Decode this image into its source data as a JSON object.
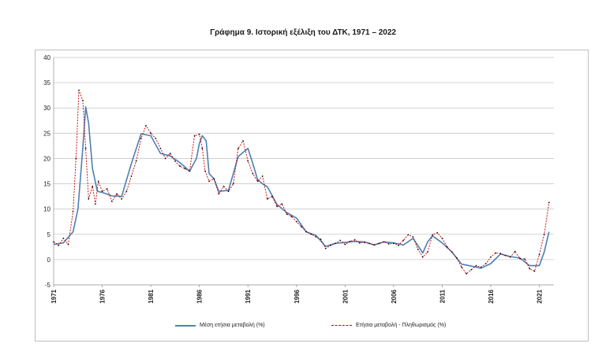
{
  "chart_data": {
    "type": "line",
    "title": "Γράφημα 9. Ιστορική εξέλιξη του ΔΤΚ, 1971 – 2022",
    "xlabel": "",
    "ylabel": "",
    "xlim": [
      1971,
      2022.5
    ],
    "ylim": [
      -5,
      40
    ],
    "yticks": [
      -5,
      0,
      5,
      10,
      15,
      20,
      25,
      30,
      35,
      40
    ],
    "xticks": [
      1971,
      1976,
      1981,
      1986,
      1991,
      1996,
      2001,
      2006,
      2011,
      2016,
      2021
    ],
    "grid": "horizontal",
    "legend_position": "bottom",
    "series": [
      {
        "name": "Μέση ετήσια μεταβολή (%)",
        "color": "#4f7fb3",
        "style": "solid",
        "x": [
          1971,
          1972,
          1973,
          1973.5,
          1974,
          1974.3,
          1974.6,
          1975,
          1975.5,
          1976,
          1977,
          1978,
          1979,
          1980,
          1981,
          1982,
          1983,
          1984,
          1985,
          1985.7,
          1986,
          1986.3,
          1986.7,
          1987,
          1987.5,
          1988,
          1989,
          1990,
          1991,
          1991.5,
          1992,
          1992.5,
          1993,
          1994,
          1995,
          1996,
          1997,
          1998,
          1999,
          2000,
          2001,
          2002,
          2003,
          2004,
          2005,
          2006,
          2007,
          2008,
          2009,
          2009.5,
          2010,
          2011,
          2012,
          2013,
          2014,
          2015,
          2016,
          2017,
          2018,
          2019,
          2020,
          2021,
          2021.5,
          2022
        ],
        "values": [
          3.0,
          3.3,
          5.5,
          10,
          22,
          30.2,
          27,
          18,
          13.5,
          13.3,
          12.6,
          12.5,
          19.0,
          24.9,
          24.5,
          21.0,
          20.5,
          19.2,
          17.5,
          20,
          23,
          24.5,
          23.5,
          17,
          16,
          13.5,
          13.7,
          20.4,
          22,
          19,
          15.8,
          15,
          14.4,
          10.9,
          9.3,
          8.2,
          5.5,
          4.8,
          2.6,
          3.2,
          3.4,
          3.6,
          3.5,
          2.9,
          3.5,
          3.3,
          2.9,
          4.2,
          1.3,
          3.5,
          4.7,
          3.3,
          1.5,
          -0.9,
          -1.3,
          -1.7,
          -0.8,
          1.1,
          0.6,
          0.3,
          -1.2,
          -1.2,
          1.5,
          5.5
        ]
      },
      {
        "name": "Ετήσια μεταβολή - Πληθωρισμός (%)",
        "color": "#c00000",
        "style": "dashed",
        "x": [
          1971,
          1971.5,
          1972,
          1972.5,
          1973,
          1973.3,
          1973.6,
          1974,
          1974.3,
          1974.6,
          1975,
          1975.3,
          1975.6,
          1976,
          1976.5,
          1977,
          1977.5,
          1978,
          1978.5,
          1979,
          1979.5,
          1980,
          1980.5,
          1981,
          1981.5,
          1982,
          1982.5,
          1983,
          1983.5,
          1984,
          1984.5,
          1985,
          1985.5,
          1986,
          1986.3,
          1986.6,
          1987,
          1987.5,
          1988,
          1988.5,
          1989,
          1989.5,
          1990,
          1990.5,
          1991,
          1991.5,
          1992,
          1992.5,
          1993,
          1993.5,
          1994,
          1994.5,
          1995,
          1995.5,
          1996,
          1996.5,
          1997,
          1997.5,
          1998,
          1998.5,
          1999,
          1999.5,
          2000,
          2000.5,
          2001,
          2001.5,
          2002,
          2002.5,
          2003,
          2003.5,
          2004,
          2004.5,
          2005,
          2005.5,
          2006,
          2006.5,
          2007,
          2007.5,
          2008,
          2008.5,
          2009,
          2009.5,
          2010,
          2010.5,
          2011,
          2011.5,
          2012,
          2012.5,
          2013,
          2013.5,
          2014,
          2014.5,
          2015,
          2015.5,
          2016,
          2016.5,
          2017,
          2017.5,
          2018,
          2018.5,
          2019,
          2019.5,
          2020,
          2020.5,
          2021,
          2021.5,
          2022
        ],
        "values": [
          3.5,
          2.8,
          4.2,
          3.0,
          9.5,
          20,
          33.5,
          31.5,
          22,
          12,
          14.5,
          11,
          15.5,
          13.5,
          14.0,
          11.5,
          13.0,
          12.0,
          13.5,
          16.5,
          19.5,
          24.0,
          26.5,
          25.0,
          24.0,
          22.0,
          20.0,
          21.0,
          19.5,
          18.5,
          18.0,
          17.5,
          24.5,
          24.8,
          22,
          17.5,
          15.5,
          16.0,
          13.0,
          14.5,
          13.5,
          15.0,
          22.0,
          23.5,
          19.5,
          17.0,
          15.5,
          16.5,
          12.0,
          12.5,
          10.5,
          11.0,
          9.0,
          8.5,
          7.5,
          6.5,
          5.5,
          5.0,
          4.5,
          4.0,
          2.2,
          2.8,
          3.2,
          3.8,
          3.0,
          3.6,
          3.9,
          3.3,
          3.4,
          3.2,
          2.9,
          3.2,
          3.5,
          3.1,
          3.2,
          2.8,
          3.8,
          4.9,
          4.5,
          2.0,
          0.5,
          1.5,
          4.9,
          5.3,
          4.2,
          2.5,
          1.5,
          0.3,
          -1.5,
          -2.8,
          -2.0,
          -1.2,
          -1.5,
          -0.8,
          0.5,
          1.3,
          1.2,
          0.8,
          0.5,
          1.6,
          0.2,
          0.1,
          -1.8,
          -2.3,
          1.0,
          5.0,
          11.3
        ]
      }
    ]
  }
}
